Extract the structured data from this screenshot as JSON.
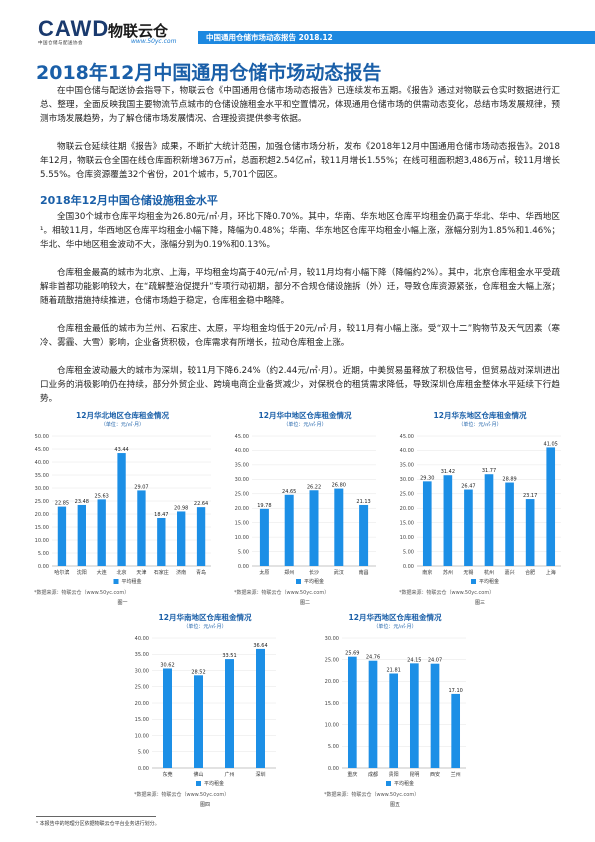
{
  "header": {
    "logo_text": "CAWD",
    "logo_subtitle": "中国仓储与配送协会",
    "partner_logo": "物联云仓",
    "partner_url": "www.50yc.com",
    "report_tag": "中国通用仓储市场动态报告 2018.12"
  },
  "title": "2018年12月中国通用仓储市场动态报告",
  "paragraphs": {
    "intro1": "在中国仓储与配送协会指导下，物联云仓《中国通用仓储市场动态报告》已连续发布五期。《报告》通过对物联云仓实时数据进行汇总、整理，全面反映我国主要物流节点城市的仓储设施租金水平和空置情况，体现通用仓储市场的供需动态变化，总结市场发展规律，预测市场发展趋势，为了解仓储市场发展情况、合理投资提供参考依据。",
    "intro2": "物联云仓延续往期《报告》成果，不断扩大统计范围，加强仓储市场分析，发布《2018年12月中国通用仓储市场动态报告》。2018年12月，物联云仓全国在线仓库面积新增367万㎡，总面积超2.54亿㎡，较11月增长1.55%；在线可租面积超3,486万㎡，较11月增长5.55%。仓库资源覆盖32个省份，201个城市，5,701个园区。",
    "section1": "2018年12月中国仓储设施租金水平",
    "p1": "全国30个城市仓库平均租金为26.80元/㎡·月，环比下降0.70%。其中，华南、华东地区仓库平均租金仍高于华北、华中、华西地区¹。相较11月，华西地区仓库平均租金小幅下降，降幅为0.48%；华南、华东地区仓库平均租金小幅上涨，涨幅分别为1.85%和1.46%；华北、华中地区租金波动不大，涨幅分别为0.19%和0.13%。",
    "p2": "仓库租金最高的城市为北京、上海，平均租金均高于40元/㎡·月，较11月均有小幅下降（降幅约2%）。其中，北京仓库租金水平受疏解非首都功能影响较大，在“疏解整治促提升”专项行动初期，部分不合规仓储设施拆（外）迁，导致仓库资源紧张，仓库租金大幅上涨；随着疏散措施持续推进，仓储市场趋于稳定，仓库租金稳中略降。",
    "p3": "仓库租金最低的城市为兰州、石家庄、太原，平均租金均低于20元/㎡·月，较11月有小幅上涨。受“双十二”购物节及天气因素（寒冷、雾霾、大雪）影响，企业备货积极，仓库需求有所增长，拉动仓库租金上涨。",
    "p4": "仓库租金波动最大的城市为深圳，较11月下降6.24%（约2.44元/㎡·月）。近期，中美贸易虽释放了积极信号，但贸易战对深圳进出口业务的消极影响仍在持续，部分外贸企业、跨境电商企业备货减少，对保税仓的租赁需求降低，导致深圳仓库租金整体水平延续下行趋势。"
  },
  "footnote": "¹ 本报告中的地理分区依据物联云仓平台业务进行划分。",
  "chart_data": [
    {
      "type": "bar",
      "title": "12月华北地区仓库租金情况",
      "unit": "（单位：元/㎡·月）",
      "categories": [
        "哈尔滨",
        "沈阳",
        "大连",
        "北京",
        "天津",
        "石家庄",
        "济南",
        "青岛"
      ],
      "values": [
        22.85,
        23.48,
        25.63,
        43.44,
        29.07,
        18.47,
        20.98,
        22.64
      ],
      "ylim": [
        0,
        50
      ],
      "yticks": [
        0,
        5,
        10,
        15,
        20,
        25,
        30,
        35,
        40,
        45,
        50
      ],
      "legend": "平均租金",
      "source": "*数据来源：物联云仓（www.50yc.com）",
      "caption": "图一",
      "color": "#1c8fe6"
    },
    {
      "type": "bar",
      "title": "12月华中地区仓库租金情况",
      "unit": "（单位：元/㎡·月）",
      "categories": [
        "太原",
        "郑州",
        "长沙",
        "武汉",
        "南昌"
      ],
      "values": [
        19.78,
        24.65,
        26.22,
        26.8,
        21.13
      ],
      "ylim": [
        0,
        45
      ],
      "yticks": [
        0,
        5,
        10,
        15,
        20,
        25,
        30,
        35,
        40,
        45
      ],
      "legend": "平均租金",
      "source": "*数据来源：物联云仓（www.50yc.com）",
      "caption": "图二",
      "color": "#1c8fe6"
    },
    {
      "type": "bar",
      "title": "12月华东地区仓库租金情况",
      "unit": "（单位：元/㎡·月）",
      "categories": [
        "南京",
        "苏州",
        "无锡",
        "杭州",
        "嘉兴",
        "合肥",
        "上海"
      ],
      "values": [
        29.3,
        31.42,
        26.47,
        31.77,
        28.89,
        23.17,
        41.05
      ],
      "ylim": [
        0,
        45
      ],
      "yticks": [
        0,
        5,
        10,
        15,
        20,
        25,
        30,
        35,
        40,
        45
      ],
      "legend": "平均租金",
      "source": "*数据来源：物联云仓（www.50yc.com）",
      "caption": "图三",
      "color": "#1c8fe6"
    },
    {
      "type": "bar",
      "title": "12月华南地区仓库租金情况",
      "unit": "（单位：元/㎡·月）",
      "categories": [
        "东莞",
        "佛山",
        "广州",
        "深圳"
      ],
      "values": [
        30.62,
        28.52,
        33.51,
        36.64
      ],
      "ylim": [
        0,
        40
      ],
      "yticks": [
        0,
        5,
        10,
        15,
        20,
        25,
        30,
        35,
        40
      ],
      "legend": "平均租金",
      "source": "*数据来源：物联云仓（www.50yc.com）",
      "caption": "图四",
      "color": "#1c8fe6"
    },
    {
      "type": "bar",
      "title": "12月华西地区仓库租金情况",
      "unit": "（单位：元/㎡·月）",
      "categories": [
        "重庆",
        "成都",
        "贵阳",
        "昆明",
        "西安",
        "兰州"
      ],
      "values": [
        25.69,
        24.76,
        21.81,
        24.15,
        24.07,
        17.1
      ],
      "ylim": [
        0,
        30
      ],
      "yticks": [
        0,
        5,
        10,
        15,
        20,
        25,
        30
      ],
      "legend": "平均租金",
      "source": "*数据来源：物联云仓（www.50yc.com）",
      "caption": "图五",
      "color": "#1c8fe6"
    }
  ]
}
